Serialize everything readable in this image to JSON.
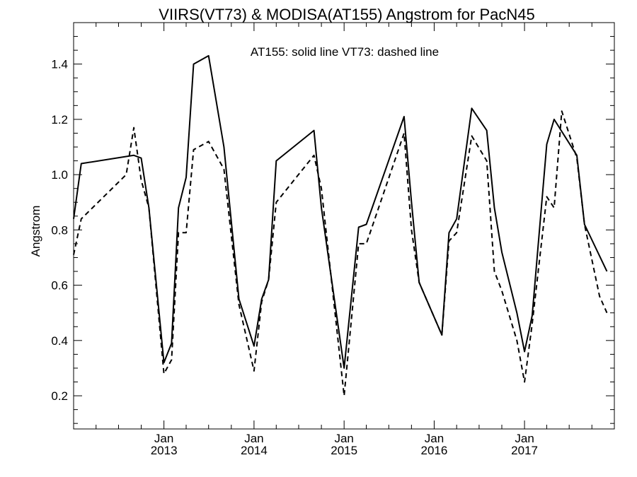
{
  "chart_data": {
    "type": "line",
    "title": "VIIRS(VT73) & MODISA(AT155)  Angstrom for PacN45",
    "legend_text": "AT155: solid line   VT73: dashed line",
    "ylabel": "Angstrom",
    "xlabel": "",
    "ylim": [
      0.08,
      1.55
    ],
    "xlim": [
      "2012-01-01",
      "2017-12-31"
    ],
    "grid": false,
    "y_ticks": [
      "0.2",
      "0.4",
      "0.6",
      "0.8",
      "1.0",
      "1.2",
      "1.4"
    ],
    "x_ticks": [
      {
        "month": "Jan",
        "year": "2013",
        "date": "2013-01-01"
      },
      {
        "month": "Jan",
        "year": "2014",
        "date": "2014-01-01"
      },
      {
        "month": "Jan",
        "year": "2015",
        "date": "2015-01-01"
      },
      {
        "month": "Jan",
        "year": "2016",
        "date": "2016-01-01"
      },
      {
        "month": "Jan",
        "year": "2017",
        "date": "2017-01-01"
      }
    ],
    "series": [
      {
        "name": "AT155",
        "style": "solid",
        "color": "#000000",
        "points": [
          [
            "2012-01-01",
            0.84
          ],
          [
            "2012-02-01",
            1.04
          ],
          [
            "2012-09-01",
            1.07
          ],
          [
            "2012-10-01",
            1.06
          ],
          [
            "2012-11-01",
            0.88
          ],
          [
            "2013-01-01",
            0.32
          ],
          [
            "2013-02-01",
            0.39
          ],
          [
            "2013-03-01",
            0.88
          ],
          [
            "2013-04-01",
            0.99
          ],
          [
            "2013-05-01",
            1.4
          ],
          [
            "2013-07-01",
            1.43
          ],
          [
            "2013-09-01",
            1.1
          ],
          [
            "2013-11-01",
            0.55
          ],
          [
            "2014-01-01",
            0.38
          ],
          [
            "2014-02-01",
            0.55
          ],
          [
            "2014-03-01",
            0.62
          ],
          [
            "2014-04-01",
            1.05
          ],
          [
            "2014-09-01",
            1.16
          ],
          [
            "2014-10-01",
            0.88
          ],
          [
            "2015-01-01",
            0.3
          ],
          [
            "2015-03-01",
            0.81
          ],
          [
            "2015-04-01",
            0.82
          ],
          [
            "2015-09-01",
            1.21
          ],
          [
            "2015-10-01",
            0.9
          ],
          [
            "2015-11-01",
            0.61
          ],
          [
            "2016-02-01",
            0.42
          ],
          [
            "2016-03-01",
            0.79
          ],
          [
            "2016-04-01",
            0.84
          ],
          [
            "2016-06-01",
            1.24
          ],
          [
            "2016-08-01",
            1.16
          ],
          [
            "2016-09-01",
            0.88
          ],
          [
            "2016-10-01",
            0.72
          ],
          [
            "2016-12-01",
            0.5
          ],
          [
            "2017-01-01",
            0.36
          ],
          [
            "2017-02-01",
            0.49
          ],
          [
            "2017-04-01",
            1.11
          ],
          [
            "2017-05-01",
            1.2
          ],
          [
            "2017-08-01",
            1.07
          ],
          [
            "2017-09-01",
            0.82
          ],
          [
            "2017-12-01",
            0.65
          ]
        ]
      },
      {
        "name": "VT73",
        "style": "dashed",
        "color": "#000000",
        "points": [
          [
            "2012-01-01",
            0.71
          ],
          [
            "2012-02-01",
            0.84
          ],
          [
            "2012-08-01",
            1.0
          ],
          [
            "2012-09-01",
            1.17
          ],
          [
            "2012-10-01",
            0.98
          ],
          [
            "2012-11-01",
            0.88
          ],
          [
            "2013-01-01",
            0.28
          ],
          [
            "2013-02-01",
            0.33
          ],
          [
            "2013-03-01",
            0.79
          ],
          [
            "2013-04-01",
            0.79
          ],
          [
            "2013-05-01",
            1.09
          ],
          [
            "2013-07-01",
            1.12
          ],
          [
            "2013-09-01",
            1.02
          ],
          [
            "2013-11-01",
            0.53
          ],
          [
            "2014-01-01",
            0.29
          ],
          [
            "2014-02-01",
            0.54
          ],
          [
            "2014-03-01",
            0.62
          ],
          [
            "2014-04-01",
            0.9
          ],
          [
            "2014-09-01",
            1.07
          ],
          [
            "2014-10-01",
            0.95
          ],
          [
            "2015-01-01",
            0.2
          ],
          [
            "2015-03-01",
            0.75
          ],
          [
            "2015-04-01",
            0.75
          ],
          [
            "2015-09-01",
            1.15
          ],
          [
            "2015-10-01",
            0.8
          ],
          [
            "2015-11-01",
            0.61
          ],
          [
            "2016-02-01",
            0.42
          ],
          [
            "2016-03-01",
            0.76
          ],
          [
            "2016-04-01",
            0.79
          ],
          [
            "2016-06-01",
            1.14
          ],
          [
            "2016-08-01",
            1.05
          ],
          [
            "2016-09-01",
            0.65
          ],
          [
            "2016-10-01",
            0.58
          ],
          [
            "2016-12-01",
            0.4
          ],
          [
            "2017-01-01",
            0.25
          ],
          [
            "2017-02-01",
            0.46
          ],
          [
            "2017-04-01",
            0.92
          ],
          [
            "2017-05-01",
            0.88
          ],
          [
            "2017-06-01",
            1.23
          ],
          [
            "2017-08-01",
            1.06
          ],
          [
            "2017-09-01",
            0.82
          ],
          [
            "2017-11-01",
            0.56
          ],
          [
            "2017-12-01",
            0.5
          ]
        ]
      }
    ]
  }
}
